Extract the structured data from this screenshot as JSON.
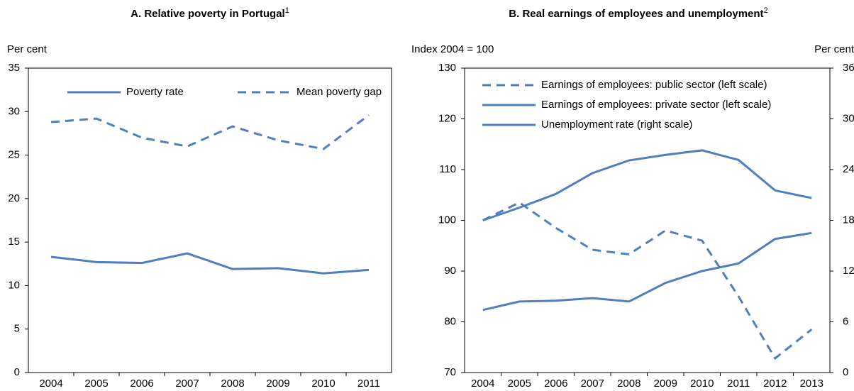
{
  "chart_data": [
    {
      "type": "line",
      "title": "A. Relative poverty in Portugal",
      "title_superscript": "1",
      "y_label": "Per cent",
      "categories": [
        "2004",
        "2005",
        "2006",
        "2007",
        "2008",
        "2009",
        "2010",
        "2011"
      ],
      "ylim": [
        0,
        35
      ],
      "yticks": [
        0,
        5,
        10,
        15,
        20,
        25,
        30,
        35
      ],
      "legend": "top",
      "legend_layout": "horizontal",
      "series": [
        {
          "name": "Poverty rate",
          "color": "#4f7fbf",
          "line_style": "solid",
          "values": [
            13.3,
            12.7,
            12.6,
            13.7,
            11.9,
            12.0,
            11.4,
            11.8
          ]
        },
        {
          "name": "Mean poverty gap",
          "color": "#4f7fbf",
          "line_style": "dashed",
          "values": [
            28.8,
            29.2,
            27.0,
            26.0,
            28.3,
            26.7,
            25.7,
            29.6
          ]
        }
      ]
    },
    {
      "type": "line",
      "title": "B. Real earnings of employees and unemployment",
      "title_superscript": "2",
      "y_label": "Index 2004 = 100",
      "y2_label": "Per cent",
      "categories": [
        "2004",
        "2005",
        "2006",
        "2007",
        "2008",
        "2009",
        "2010",
        "2011",
        "2012",
        "2013"
      ],
      "ylim": [
        70,
        130
      ],
      "yticks": [
        70,
        80,
        90,
        100,
        110,
        120,
        130
      ],
      "y2lim": [
        0,
        36
      ],
      "y2ticks": [
        0,
        6,
        12,
        18,
        24,
        30,
        36
      ],
      "legend": "top-left",
      "legend_layout": "vertical",
      "series": [
        {
          "name": "Earnings of employees: public sector (left scale)",
          "color": "#4f7fbf",
          "line_style": "dashed",
          "values": [
            100,
            103.5,
            98.5,
            94.2,
            93.3,
            98.0,
            96.0,
            85.0,
            72.8,
            78.5
          ]
        },
        {
          "name": "Earnings of employees: private sector (left scale)",
          "color": "#4f7fbf",
          "line_style": "solid",
          "values": [
            100,
            102.5,
            105.2,
            109.3,
            111.8,
            112.9,
            113.8,
            111.9,
            105.9,
            104.4
          ]
        },
        {
          "name": "Unemployment rate (right scale)",
          "color": "#4f7fbf",
          "line_style": "solid",
          "axis": "y2",
          "values": [
            7.4,
            8.4,
            8.5,
            8.8,
            8.4,
            10.6,
            12.0,
            12.9,
            15.8,
            16.5
          ]
        }
      ]
    }
  ]
}
